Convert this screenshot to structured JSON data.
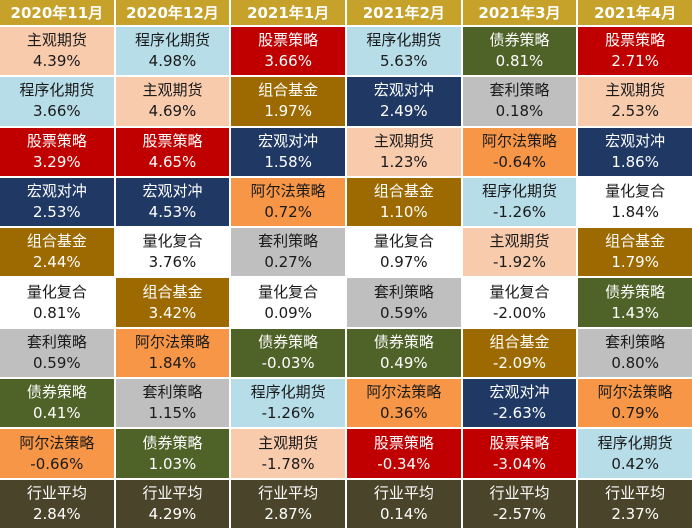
{
  "table": {
    "columns": [
      {
        "header": "2020年11月",
        "cells": [
          {
            "name": "主观期货",
            "value": "4.39%",
            "color": "#f8cbad"
          },
          {
            "name": "程序化期货",
            "value": "3.66%",
            "color": "#b7dde8"
          },
          {
            "name": "股票策略",
            "value": "3.29%",
            "color": "#c00000"
          },
          {
            "name": "宏观对冲",
            "value": "2.53%",
            "color": "#1f3864"
          },
          {
            "name": "组合基金",
            "value": "2.44%",
            "color": "#9c6a00"
          },
          {
            "name": "量化复合",
            "value": "0.81%",
            "color": "#ffffff"
          },
          {
            "name": "套利策略",
            "value": "0.59%",
            "color": "#bfbfbf"
          },
          {
            "name": "债券策略",
            "value": "0.41%",
            "color": "#4f6228"
          },
          {
            "name": "阿尔法策略",
            "value": "-0.66%",
            "color": "#f79646"
          },
          {
            "name": "行业平均",
            "value": "2.84%",
            "color": "#4a452a"
          }
        ]
      },
      {
        "header": "2020年12月",
        "cells": [
          {
            "name": "程序化期货",
            "value": "4.98%",
            "color": "#b7dde8"
          },
          {
            "name": "主观期货",
            "value": "4.69%",
            "color": "#f8cbad"
          },
          {
            "name": "股票策略",
            "value": "4.65%",
            "color": "#c00000"
          },
          {
            "name": "宏观对冲",
            "value": "4.53%",
            "color": "#1f3864"
          },
          {
            "name": "量化复合",
            "value": "3.76%",
            "color": "#ffffff"
          },
          {
            "name": "组合基金",
            "value": "3.42%",
            "color": "#9c6a00"
          },
          {
            "name": "阿尔法策略",
            "value": "1.84%",
            "color": "#f79646"
          },
          {
            "name": "套利策略",
            "value": "1.15%",
            "color": "#bfbfbf"
          },
          {
            "name": "债券策略",
            "value": "1.03%",
            "color": "#4f6228"
          },
          {
            "name": "行业平均",
            "value": "4.29%",
            "color": "#4a452a"
          }
        ]
      },
      {
        "header": "2021年1月",
        "cells": [
          {
            "name": "股票策略",
            "value": "3.66%",
            "color": "#c00000"
          },
          {
            "name": "组合基金",
            "value": "1.97%",
            "color": "#9c6a00"
          },
          {
            "name": "宏观对冲",
            "value": "1.58%",
            "color": "#1f3864"
          },
          {
            "name": "阿尔法策略",
            "value": "0.72%",
            "color": "#f79646"
          },
          {
            "name": "套利策略",
            "value": "0.27%",
            "color": "#bfbfbf"
          },
          {
            "name": "量化复合",
            "value": "0.09%",
            "color": "#ffffff"
          },
          {
            "name": "债券策略",
            "value": "-0.03%",
            "color": "#4f6228"
          },
          {
            "name": "程序化期货",
            "value": "-1.26%",
            "color": "#b7dde8"
          },
          {
            "name": "主观期货",
            "value": "-1.78%",
            "color": "#f8cbad"
          },
          {
            "name": "行业平均",
            "value": "2.87%",
            "color": "#4a452a"
          }
        ]
      },
      {
        "header": "2021年2月",
        "cells": [
          {
            "name": "程序化期货",
            "value": "5.63%",
            "color": "#b7dde8"
          },
          {
            "name": "宏观对冲",
            "value": "2.49%",
            "color": "#1f3864"
          },
          {
            "name": "主观期货",
            "value": "1.23%",
            "color": "#f8cbad"
          },
          {
            "name": "组合基金",
            "value": "1.10%",
            "color": "#9c6a00"
          },
          {
            "name": "量化复合",
            "value": "0.97%",
            "color": "#ffffff"
          },
          {
            "name": "套利策略",
            "value": "0.59%",
            "color": "#bfbfbf"
          },
          {
            "name": "债券策略",
            "value": "0.49%",
            "color": "#4f6228"
          },
          {
            "name": "阿尔法策略",
            "value": "0.36%",
            "color": "#f79646"
          },
          {
            "name": "股票策略",
            "value": "-0.34%",
            "color": "#c00000"
          },
          {
            "name": "行业平均",
            "value": "0.14%",
            "color": "#4a452a"
          }
        ]
      },
      {
        "header": "2021年3月",
        "cells": [
          {
            "name": "债券策略",
            "value": "0.81%",
            "color": "#4f6228"
          },
          {
            "name": "套利策略",
            "value": "0.18%",
            "color": "#bfbfbf"
          },
          {
            "name": "阿尔法策略",
            "value": "-0.64%",
            "color": "#f79646"
          },
          {
            "name": "程序化期货",
            "value": "-1.26%",
            "color": "#b7dde8"
          },
          {
            "name": "主观期货",
            "value": "-1.92%",
            "color": "#f8cbad"
          },
          {
            "name": "量化复合",
            "value": "-2.00%",
            "color": "#ffffff"
          },
          {
            "name": "组合基金",
            "value": "-2.09%",
            "color": "#9c6a00"
          },
          {
            "name": "宏观对冲",
            "value": "-2.63%",
            "color": "#1f3864"
          },
          {
            "name": "股票策略",
            "value": "-3.04%",
            "color": "#c00000"
          },
          {
            "name": "行业平均",
            "value": "-2.57%",
            "color": "#4a452a"
          }
        ]
      },
      {
        "header": "2021年4月",
        "cells": [
          {
            "name": "股票策略",
            "value": "2.71%",
            "color": "#c00000"
          },
          {
            "name": "主观期货",
            "value": "2.53%",
            "color": "#f8cbad"
          },
          {
            "name": "宏观对冲",
            "value": "1.86%",
            "color": "#1f3864"
          },
          {
            "name": "量化复合",
            "value": "1.84%",
            "color": "#ffffff"
          },
          {
            "name": "组合基金",
            "value": "1.79%",
            "color": "#9c6a00"
          },
          {
            "name": "债券策略",
            "value": "1.43%",
            "color": "#4f6228"
          },
          {
            "name": "套利策略",
            "value": "0.80%",
            "color": "#bfbfbf"
          },
          {
            "name": "阿尔法策略",
            "value": "0.79%",
            "color": "#f79646"
          },
          {
            "name": "程序化期货",
            "value": "0.42%",
            "color": "#b7dde8"
          },
          {
            "name": "行业平均",
            "value": "2.37%",
            "color": "#4a452a"
          }
        ]
      }
    ]
  }
}
